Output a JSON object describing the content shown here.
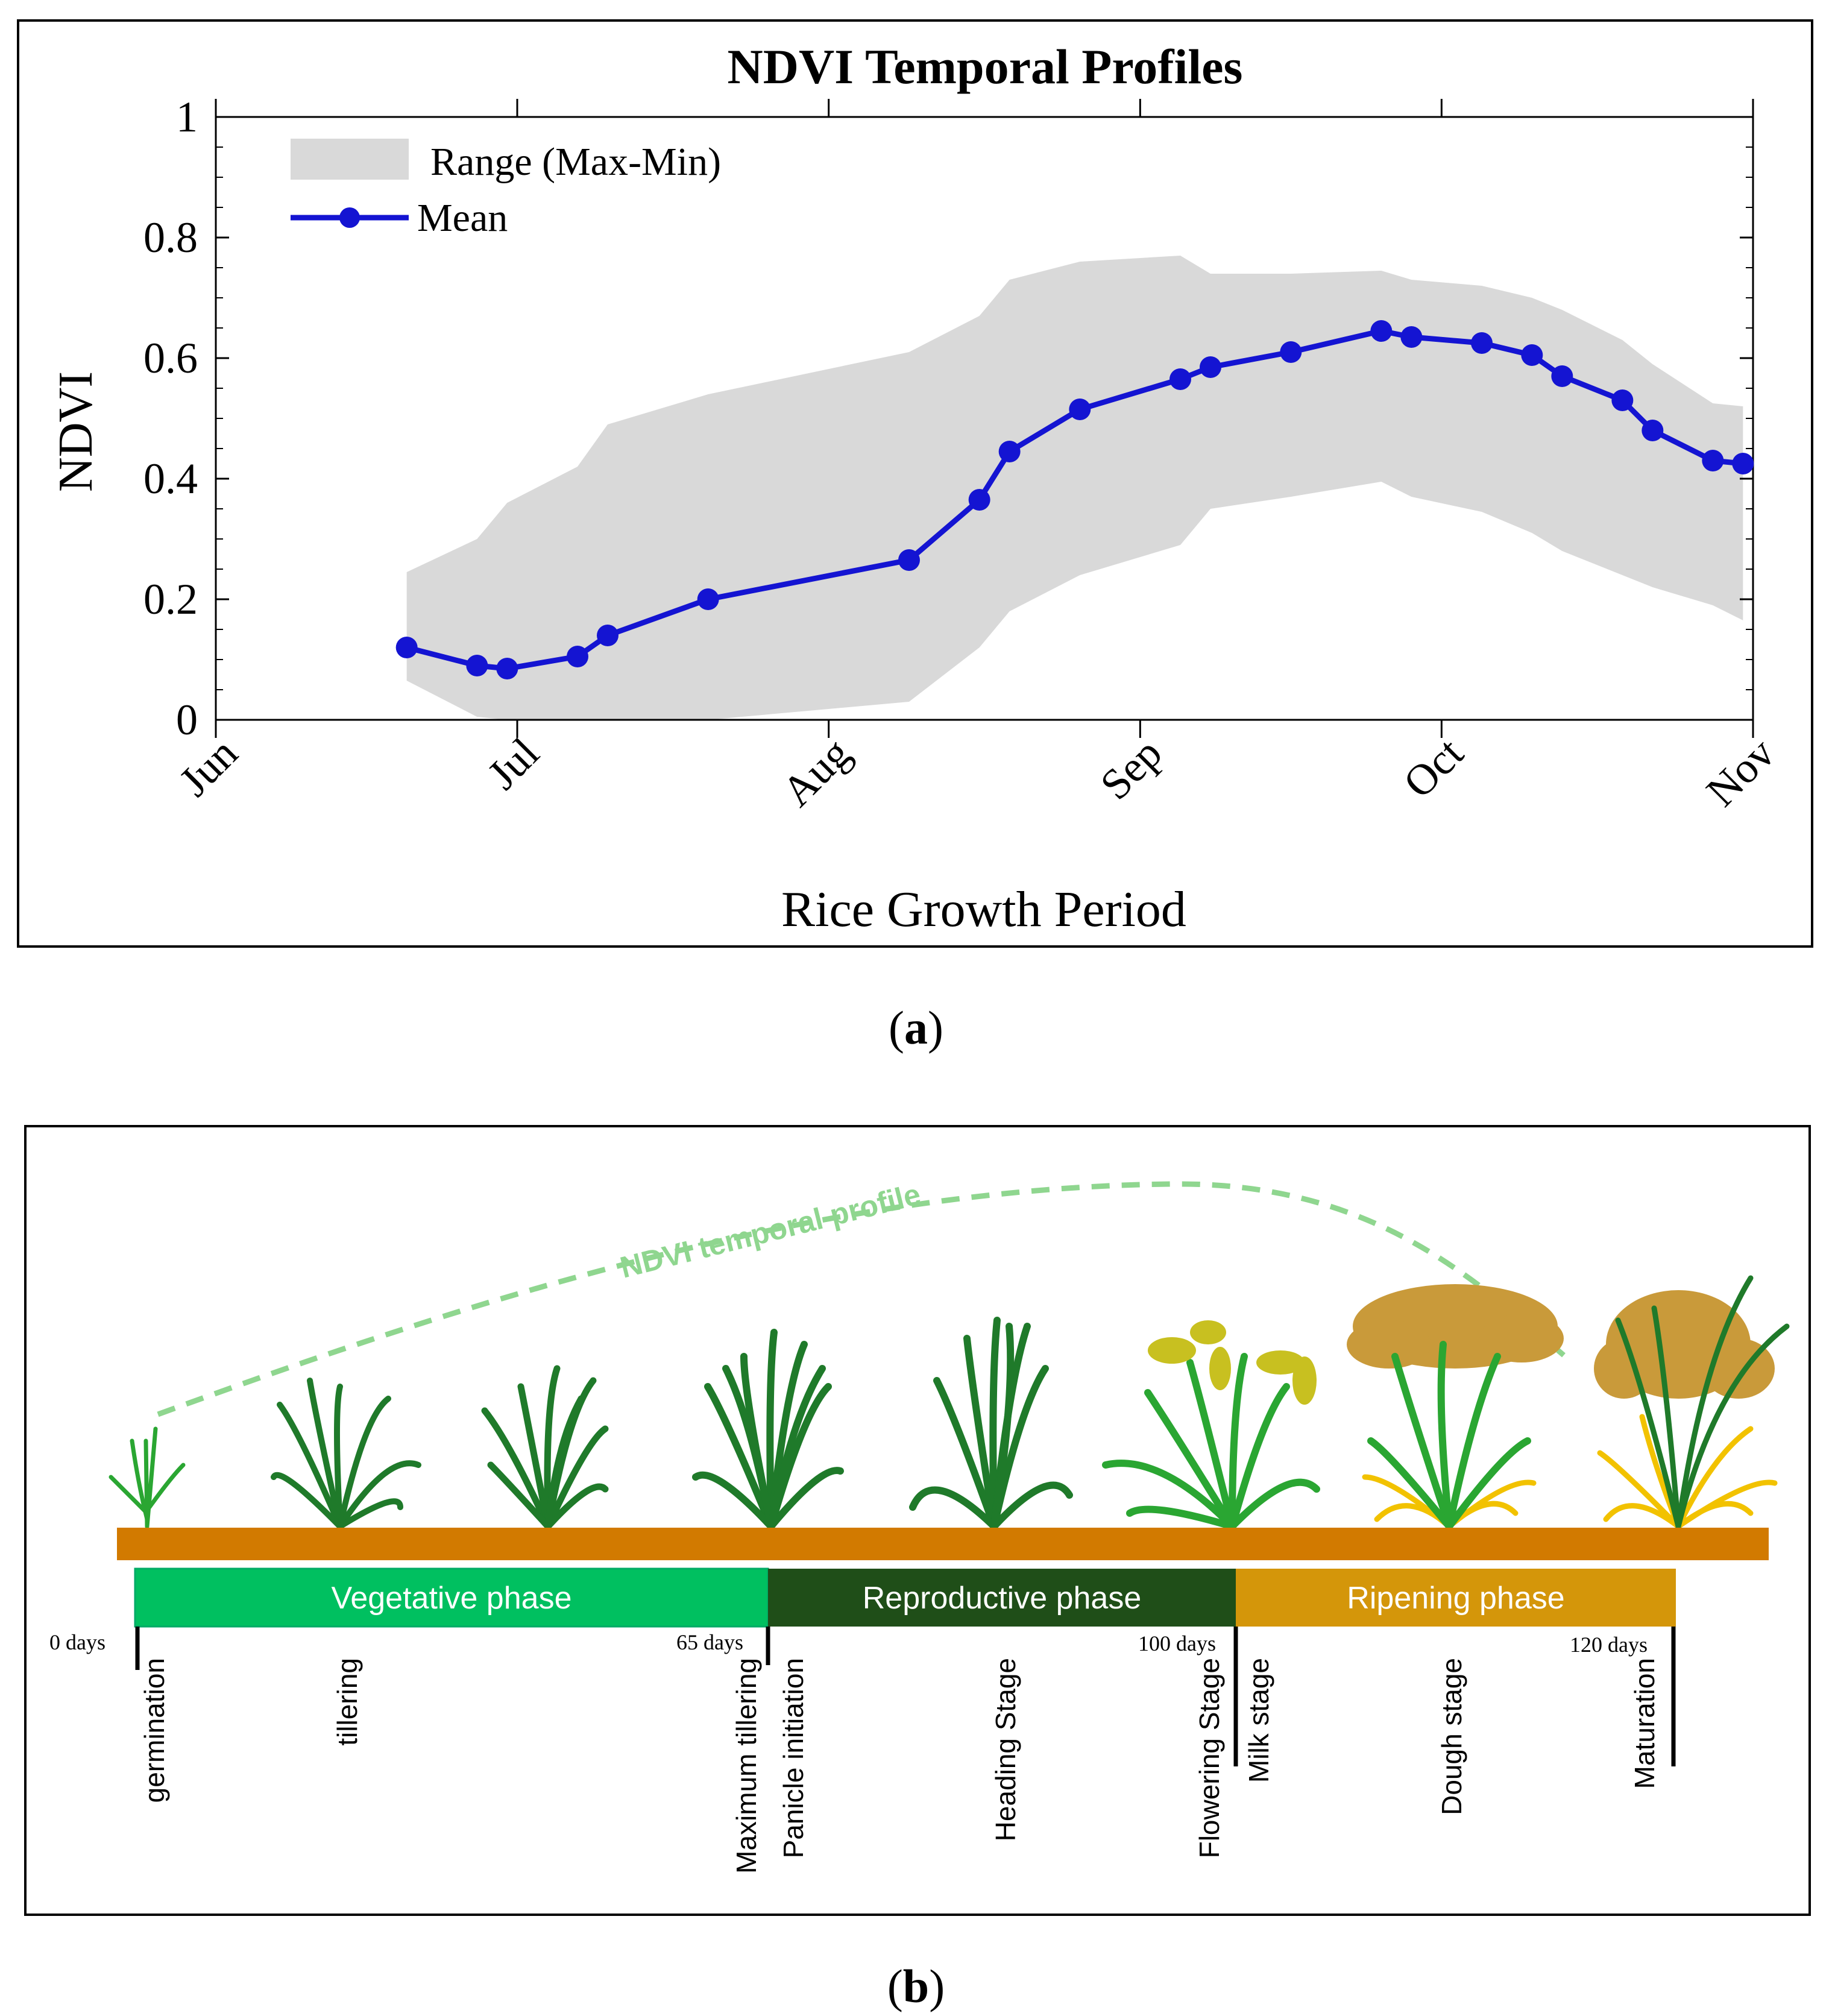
{
  "chart_data": {
    "type": "area",
    "title": "NDVI Temporal Profiles",
    "xlabel": "Rice Growth Period",
    "ylabel": "NDVI",
    "ylim": [
      0,
      1
    ],
    "yticks": [
      "0",
      "0.2",
      "0.4",
      "0.6",
      "0.8",
      "1"
    ],
    "xlim_days": [
      0,
      153
    ],
    "months": [
      {
        "label": "Jun",
        "day": 0
      },
      {
        "label": "Jul",
        "day": 30
      },
      {
        "label": "Aug",
        "day": 61
      },
      {
        "label": "Sep",
        "day": 92
      },
      {
        "label": "Oct",
        "day": 122
      },
      {
        "label": "Nov",
        "day": 153
      }
    ],
    "legend": {
      "range_label": "Range (Max-Min)",
      "mean_label": "Mean",
      "position": "top-left"
    },
    "colors": {
      "mean": "#1414d2",
      "range": "#d9d9d9"
    },
    "mean_series": {
      "name": "Mean",
      "x_days": [
        19,
        26,
        29,
        36,
        39,
        49,
        69,
        76,
        79,
        86,
        96,
        99,
        107,
        116,
        119,
        126,
        131,
        134,
        140,
        143,
        149,
        152
      ],
      "values": [
        0.12,
        0.09,
        0.085,
        0.105,
        0.14,
        0.2,
        0.265,
        0.365,
        0.445,
        0.515,
        0.565,
        0.585,
        0.61,
        0.645,
        0.635,
        0.625,
        0.605,
        0.57,
        0.53,
        0.48,
        0.43,
        0.425
      ]
    },
    "range_series": {
      "name": "Range (Max-Min)",
      "x_days": [
        19,
        26,
        29,
        36,
        39,
        49,
        69,
        76,
        79,
        86,
        96,
        99,
        107,
        116,
        119,
        126,
        131,
        134,
        140,
        143,
        149,
        152
      ],
      "max": [
        0.245,
        0.3,
        0.36,
        0.42,
        0.49,
        0.54,
        0.61,
        0.67,
        0.73,
        0.76,
        0.77,
        0.74,
        0.74,
        0.745,
        0.73,
        0.72,
        0.7,
        0.68,
        0.63,
        0.59,
        0.525,
        0.52
      ],
      "min": [
        0.065,
        0.005,
        0.0,
        0.0,
        0.0,
        0.0,
        0.03,
        0.12,
        0.18,
        0.24,
        0.29,
        0.35,
        0.37,
        0.395,
        0.37,
        0.345,
        0.31,
        0.28,
        0.24,
        0.22,
        0.19,
        0.165
      ]
    }
  },
  "captions": {
    "a": "a",
    "b": "b"
  },
  "stages_diagram": {
    "curve_label": "NDVI temporal profile",
    "phases": [
      {
        "label": "Vegetative phase",
        "color": "#00c060"
      },
      {
        "label": "Reproductive phase",
        "color": "#1f4e18"
      },
      {
        "label": "Ripening phase",
        "color": "#d4960a"
      }
    ],
    "day_marks": [
      "0 days",
      "65 days",
      "100 days",
      "120 days"
    ],
    "stages": [
      "germination",
      "tillering",
      "Maximum tillering",
      "Panicle initiation",
      "Heading Stage",
      "Flowering Stage",
      "Milk stage",
      "Dough stage",
      "Maturation"
    ],
    "colors": {
      "soil": "#d27a00",
      "curve": "#8fd68f",
      "leaf_dark": "#1f7a2a",
      "leaf_green": "#2aa632",
      "straw": "#f2c200",
      "grain": "#c99a3a"
    }
  }
}
